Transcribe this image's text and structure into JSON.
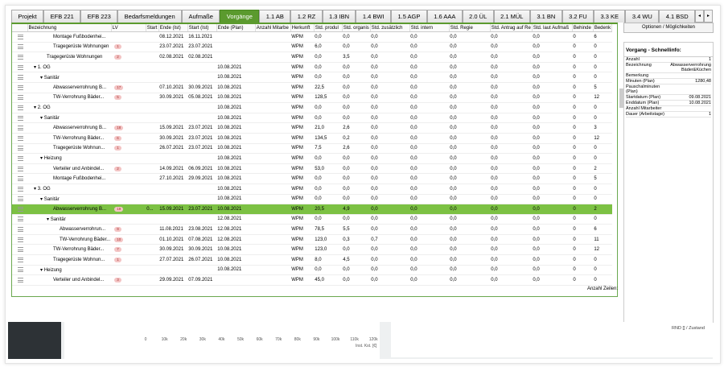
{
  "tabs": {
    "items": [
      "Projekt",
      "EFB 221",
      "EFB 223",
      "Bedarfsmeldungen",
      "Aufmaße",
      "Vorgänge",
      "1.1 AB",
      "1.2 RZ",
      "1.3 IBN",
      "1.4 BWI",
      "1.5 AGP",
      "1.6 AAA",
      "2.0 ÜL",
      "2.1 MÜL",
      "3.1 BN",
      "3.2 FU",
      "3.3 KE",
      "3.4 WU",
      "4.1 BSD"
    ],
    "active": 5
  },
  "table": {
    "columns": [
      "Bezeichnung",
      "LV",
      "Start",
      "Ende (Ist)",
      "Start (Ist)",
      "Ende (Plan)",
      "Anzahl Mitarbe",
      "Herkunft",
      "Std. produl",
      "Std. organis",
      "Std. zusätzlich",
      "Std. intern",
      "Std. Regie",
      "Std. Antrag auf Re",
      "Std. laut Aufmaß",
      "Behinde",
      "Bedenk"
    ],
    "rows": [
      {
        "level": 3,
        "group": false,
        "cells": [
          "Montage Fußbodenhei...",
          null,
          null,
          "08.12.2021",
          "16.11.2021",
          null,
          null,
          "WPM",
          "0,0",
          "0,0",
          "0,0",
          "0,0",
          "0,0",
          "0,0",
          "0,0",
          "0",
          "6"
        ]
      },
      {
        "level": 3,
        "group": false,
        "cells": [
          "Tragegerüste Wohnungen",
          "1",
          null,
          "23.07.2021",
          "23.07.2021",
          null,
          null,
          "WPM",
          "6,0",
          "0,0",
          "0,0",
          "0,0",
          "0,0",
          "0,0",
          "0,0",
          "0",
          "0"
        ]
      },
      {
        "level": 2,
        "group": false,
        "cells": [
          "Tragegerüste Wohnungen",
          "2",
          null,
          "02.08.2021",
          "02.08.2021",
          null,
          null,
          "WPM",
          "0,0",
          "3,5",
          "0,0",
          "0,0",
          "0,0",
          "0,0",
          "0,0",
          "0",
          "0"
        ]
      },
      {
        "level": 1,
        "group": true,
        "cells": [
          "1. OG",
          null,
          null,
          null,
          null,
          "10.08.2021",
          null,
          "WPM",
          "0,0",
          "0,0",
          "0,0",
          "0,0",
          "0,0",
          "0,0",
          "0,0",
          "0",
          "0"
        ]
      },
      {
        "level": 2,
        "group": true,
        "cells": [
          "Sanitär",
          null,
          null,
          null,
          null,
          "10.08.2021",
          null,
          "WPM",
          "0,0",
          "0,0",
          "0,0",
          "0,0",
          "0,0",
          "0,0",
          "0,0",
          "0",
          "0"
        ]
      },
      {
        "level": 3,
        "group": false,
        "cells": [
          "Abwasserverrohrung B...",
          "17",
          null,
          "07.10.2021",
          "30.09.2021",
          "10.08.2021",
          null,
          "WPM",
          "22,5",
          "0,0",
          "0,0",
          "0,0",
          "0,0",
          "0,0",
          "0,0",
          "0",
          "5"
        ]
      },
      {
        "level": 3,
        "group": false,
        "cells": [
          "TW-Verrohrung Bäder...",
          "5",
          null,
          "30.09.2021",
          "05.08.2021",
          "10.08.2021",
          null,
          "WPM",
          "128,5",
          "0,0",
          "0,0",
          "0,0",
          "0,0",
          "0,0",
          "0,0",
          "0",
          "12"
        ]
      },
      {
        "level": 1,
        "group": true,
        "cells": [
          "2. OG",
          null,
          null,
          null,
          null,
          "10.08.2021",
          null,
          "WPM",
          "0,0",
          "0,0",
          "0,0",
          "0,0",
          "0,0",
          "0,0",
          "0,0",
          "0",
          "0"
        ]
      },
      {
        "level": 2,
        "group": true,
        "cells": [
          "Sanitär",
          null,
          null,
          null,
          null,
          "10.08.2021",
          null,
          "WPM",
          "0,0",
          "0,0",
          "0,0",
          "0,0",
          "0,0",
          "0,0",
          "0,0",
          "0",
          "0"
        ]
      },
      {
        "level": 3,
        "group": false,
        "cells": [
          "Abwasserverrohrung B...",
          "18",
          null,
          "15.09.2021",
          "23.07.2021",
          "10.08.2021",
          null,
          "WPM",
          "21,0",
          "2,6",
          "0,0",
          "0,0",
          "0,0",
          "0,0",
          "0,0",
          "0",
          "3"
        ]
      },
      {
        "level": 3,
        "group": false,
        "cells": [
          "TW-Verrohrung Bäder...",
          "6",
          null,
          "30.09.2021",
          "23.07.2021",
          "10.08.2021",
          null,
          "WPM",
          "134,5",
          "0,2",
          "0,0",
          "0,0",
          "0,0",
          "0,0",
          "0,0",
          "0",
          "12"
        ]
      },
      {
        "level": 3,
        "group": false,
        "cells": [
          "Tragegerüste Wohnun...",
          "1",
          null,
          "26.07.2021",
          "23.07.2021",
          "10.08.2021",
          null,
          "WPM",
          "7,5",
          "2,6",
          "0,0",
          "0,0",
          "0,0",
          "0,0",
          "0,0",
          "0",
          "0"
        ]
      },
      {
        "level": 2,
        "group": true,
        "cells": [
          "Heizung",
          null,
          null,
          null,
          null,
          "10.08.2021",
          null,
          "WPM",
          "0,0",
          "0,0",
          "0,0",
          "0,0",
          "0,0",
          "0,0",
          "0,0",
          "0",
          "0"
        ]
      },
      {
        "level": 3,
        "group": false,
        "cells": [
          "Verteiler und Anbindel...",
          "2",
          null,
          "14.09.2021",
          "06.09.2021",
          "10.08.2021",
          null,
          "WPM",
          "53,0",
          "0,0",
          "0,0",
          "0,0",
          "0,0",
          "0,0",
          "0,0",
          "0",
          "2"
        ]
      },
      {
        "level": 3,
        "group": false,
        "cells": [
          "Montage Fußbodenhei...",
          null,
          null,
          "27.10.2021",
          "29.09.2021",
          "10.08.2021",
          null,
          "WPM",
          "0,0",
          "0,0",
          "0,0",
          "0,0",
          "0,0",
          "0,0",
          "0,0",
          "0",
          "5"
        ]
      },
      {
        "level": 1,
        "group": true,
        "cells": [
          "3. OG",
          null,
          null,
          null,
          null,
          "10.08.2021",
          null,
          "WPM",
          "0,0",
          "0,0",
          "0,0",
          "0,0",
          "0,0",
          "0,0",
          "0,0",
          "0",
          "0"
        ]
      },
      {
        "level": 2,
        "group": true,
        "cells": [
          "Sanitär",
          null,
          null,
          null,
          null,
          "10.08.2021",
          null,
          "WPM",
          "0,0",
          "0,0",
          "0,0",
          "0,0",
          "0,0",
          "0,0",
          "0,0",
          "0",
          "0"
        ]
      },
      {
        "level": 3,
        "group": false,
        "selected": true,
        "cells": [
          "Abwasserverrohrung B...",
          "19",
          "0...",
          "15.09.2021",
          "23.07.2021",
          "10.08.2021",
          null,
          "WPM",
          "20,5",
          "4,9",
          "0,0",
          "0,0",
          "0,0",
          "0,0",
          "0,0",
          "0",
          "2"
        ]
      },
      {
        "level": 3,
        "group": true,
        "cells": [
          "Sanitär",
          null,
          null,
          null,
          null,
          "12.08.2021",
          null,
          "WPM",
          "0,0",
          "0,0",
          "0,0",
          "0,0",
          "0,0",
          "0,0",
          "0,0",
          "0",
          "0"
        ]
      },
      {
        "level": 4,
        "group": false,
        "cells": [
          "Abwasserverrohrun...",
          "9",
          null,
          "11.08.2021",
          "23.08.2021",
          "12.08.2021",
          null,
          "WPM",
          "78,5",
          "5,5",
          "0,0",
          "0,0",
          "0,0",
          "0,0",
          "0,0",
          "0",
          "6"
        ]
      },
      {
        "level": 4,
        "group": false,
        "cells": [
          "TW-Verrohrung Bäder...",
          "10",
          null,
          "01.10.2021",
          "07.08.2021",
          "12.08.2021",
          null,
          "WPM",
          "123,0",
          "0,3",
          "0,7",
          "0,0",
          "0,0",
          "0,0",
          "0,0",
          "0",
          "11"
        ]
      },
      {
        "level": 3,
        "group": false,
        "cells": [
          "TW-Verrohrung Bäder...",
          "7",
          null,
          "30.09.2021",
          "30.09.2021",
          "10.08.2021",
          null,
          "WPM",
          "123,0",
          "0,0",
          "0,0",
          "0,0",
          "0,0",
          "0,0",
          "0,0",
          "0",
          "12"
        ]
      },
      {
        "level": 3,
        "group": false,
        "cells": [
          "Tragegerüste Wohnun...",
          "1",
          null,
          "27.07.2021",
          "26.07.2021",
          "10.08.2021",
          null,
          "WPM",
          "8,0",
          "4,5",
          "0,0",
          "0,0",
          "0,0",
          "0,0",
          "0,0",
          "0",
          "0"
        ]
      },
      {
        "level": 2,
        "group": true,
        "cells": [
          "Heizung",
          null,
          null,
          null,
          null,
          "10.08.2021",
          null,
          "WPM",
          "0,0",
          "0,0",
          "0,0",
          "0,0",
          "0,0",
          "0,0",
          "0,0",
          "0",
          "0"
        ]
      },
      {
        "level": 3,
        "group": false,
        "cells": [
          "Verteiler und Anbindel...",
          "3",
          null,
          "29.09.2021",
          "07.09.2021",
          null,
          null,
          "WPM",
          "45,0",
          "0,0",
          "0,0",
          "0,0",
          "0,0",
          "0,0",
          "0,0",
          "0",
          "0"
        ]
      }
    ],
    "footer": "Anzahl Zeilen:"
  },
  "panel": {
    "button": "Optionen / Möglichkeiten",
    "title": "Vorgang - Schnellinfo:",
    "fields": [
      {
        "label": "Anzahl",
        "value": "1"
      },
      {
        "label": "Bezeichnung",
        "value": "Abwasserverrohrung Bäder&Küchen"
      },
      {
        "label": "Bemerkung",
        "value": null
      },
      {
        "label": "Minuten (Plan)",
        "value": "1280,48"
      },
      {
        "label": "Pauschalminuten (Plan)",
        "value": null
      },
      {
        "label": "Startdatum (Plan)",
        "value": "09.08.2021"
      },
      {
        "label": "Enddatum (Plan)",
        "value": "10.08.2021"
      },
      {
        "label": "Anzahl Mitarbeiter",
        "value": null
      },
      {
        "label": "Dauer (Arbeitstage)",
        "value": "1"
      }
    ]
  },
  "bottom": {
    "ticks": [
      "0",
      "10k",
      "20k",
      "30k",
      "40k",
      "50k",
      "60k",
      "70k",
      "80k",
      "90k",
      "100k",
      "110k",
      "120k"
    ],
    "axis_label": "Inst. Kst. [€]",
    "status": "RND [] / Zustand"
  }
}
